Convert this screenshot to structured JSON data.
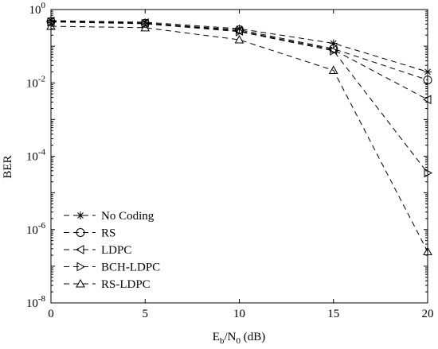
{
  "chart_data": {
    "type": "line",
    "xlabel": {
      "main": "E",
      "sub1": "b",
      "mid": "/N",
      "sub2": "0",
      "tail": " (dB)"
    },
    "ylabel": "BER",
    "x": [
      0,
      5,
      10,
      15,
      20
    ],
    "xlim": [
      0,
      20
    ],
    "ylim": [
      1e-08,
      1
    ],
    "yscale": "log",
    "x_ticks": [
      0,
      5,
      10,
      15,
      20
    ],
    "y_ticks": [
      {
        "value": 1,
        "base": "10",
        "exp": "0"
      },
      {
        "value": 0.01,
        "base": "10",
        "exp": "-2"
      },
      {
        "value": 0.0001,
        "base": "10",
        "exp": "-4"
      },
      {
        "value": 1e-06,
        "base": "10",
        "exp": "-6"
      },
      {
        "value": 1e-08,
        "base": "10",
        "exp": "-8"
      }
    ],
    "grid": false,
    "legend_position": "bottom-left",
    "line_style": "dashed",
    "series": [
      {
        "name": "No Coding",
        "marker": "asterisk",
        "values": [
          0.5,
          0.45,
          0.3,
          0.12,
          0.02
        ]
      },
      {
        "name": "RS",
        "marker": "circle",
        "values": [
          0.47,
          0.42,
          0.28,
          0.085,
          0.012
        ]
      },
      {
        "name": "LDPC",
        "marker": "triangle-left",
        "values": [
          0.48,
          0.43,
          0.26,
          0.08,
          0.0035
        ]
      },
      {
        "name": "BCH-LDPC",
        "marker": "triangle-right",
        "values": [
          0.46,
          0.41,
          0.25,
          0.075,
          3.5e-05
        ]
      },
      {
        "name": "RS-LDPC",
        "marker": "triangle-up",
        "values": [
          0.35,
          0.32,
          0.15,
          0.022,
          2.5e-07
        ]
      }
    ]
  }
}
